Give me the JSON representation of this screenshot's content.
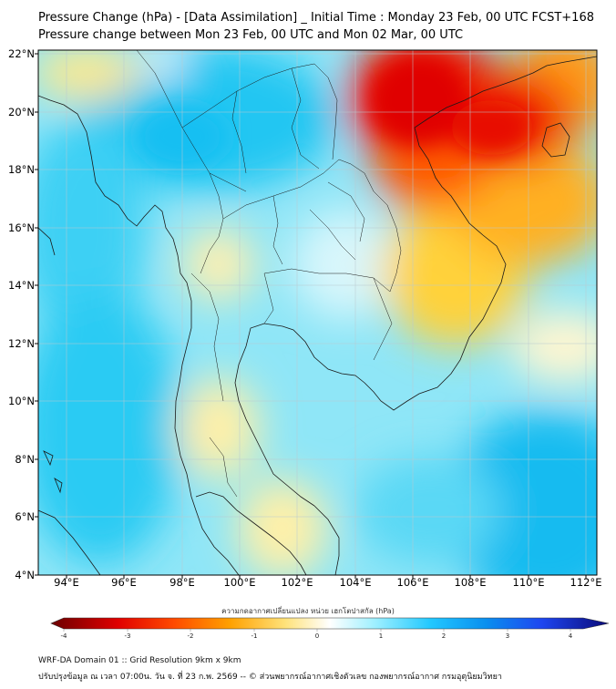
{
  "title_line1": "Pressure Change (hPa) - [Data Assimilation] _ Initial Time : Monday 23 Feb, 00 UTC FCST+168",
  "title_line2": "Pressure change between Mon 23 Feb, 00 UTC and Mon 02 Mar, 00 UTC",
  "lat_labels": [
    "22°N",
    "20°N",
    "18°N",
    "16°N",
    "14°N",
    "12°N",
    "10°N",
    "8°N",
    "6°N",
    "4°N"
  ],
  "lon_labels": [
    "94°E",
    "96°E",
    "98°E",
    "100°E",
    "102°E",
    "104°E",
    "106°E",
    "108°E",
    "110°E",
    "112°E"
  ],
  "colorbar": {
    "label": "ความกดอากาศเปลี่ยนแปลง หน่วย เฮกโตปาสกัล (hPa)",
    "ticks": [
      "-4",
      "-3",
      "-2",
      "-1",
      "0",
      "1",
      "2",
      "3",
      "4"
    ],
    "colors": {
      "neg4": "#6b0000",
      "neg3": "#e00000",
      "neg2": "#ff7a00",
      "neg1": "#ffd84a",
      "zero": "#ffffff",
      "pos1": "#7ee8ff",
      "pos2": "#14b4f5",
      "pos3": "#1e46f0",
      "pos4": "#0a0a78"
    }
  },
  "footer_line1": "WRF-DA Domain 01 :: Grid Resolution 9km x 9km",
  "footer_line2": "ปรับปรุงข้อมูล ณ เวลา 07:00น. วัน จ. ที่ 23 ก.พ. 2569 -- © ส่วนพยากรณ์อากาศเชิงตัวเลข กองพยากรณ์อากาศ กรมอุตุนิยมวิทยา"
}
